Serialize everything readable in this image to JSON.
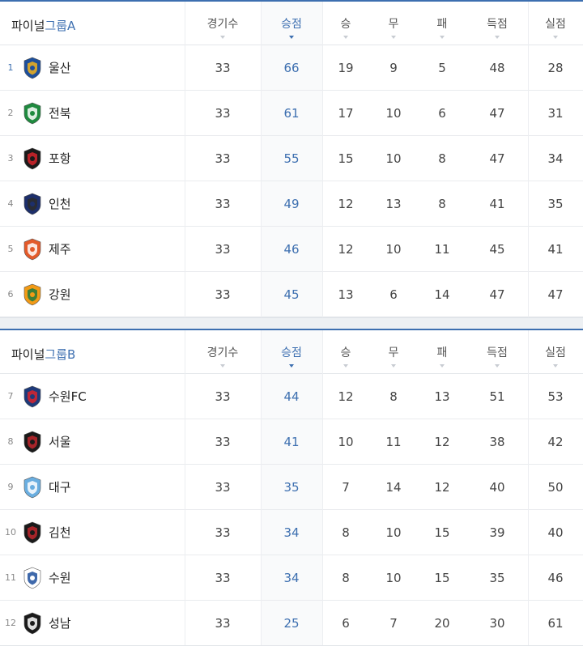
{
  "columns": [
    "경기수",
    "승점",
    "승",
    "무",
    "패",
    "득점",
    "실점"
  ],
  "group_a": {
    "title_prefix": "파이널",
    "title_group": "그룹A",
    "rows": [
      {
        "rank": "1",
        "team": "울산",
        "logo": "ulsan-logo",
        "games": "33",
        "pts": "66",
        "w": "19",
        "d": "9",
        "l": "5",
        "gf": "48",
        "ga": "28"
      },
      {
        "rank": "2",
        "team": "전북",
        "logo": "jeonbuk-logo",
        "games": "33",
        "pts": "61",
        "w": "17",
        "d": "10",
        "l": "6",
        "gf": "47",
        "ga": "31"
      },
      {
        "rank": "3",
        "team": "포항",
        "logo": "pohang-logo",
        "games": "33",
        "pts": "55",
        "w": "15",
        "d": "10",
        "l": "8",
        "gf": "47",
        "ga": "34"
      },
      {
        "rank": "4",
        "team": "인천",
        "logo": "incheon-logo",
        "games": "33",
        "pts": "49",
        "w": "12",
        "d": "13",
        "l": "8",
        "gf": "41",
        "ga": "35"
      },
      {
        "rank": "5",
        "team": "제주",
        "logo": "jeju-logo",
        "games": "33",
        "pts": "46",
        "w": "12",
        "d": "10",
        "l": "11",
        "gf": "45",
        "ga": "41"
      },
      {
        "rank": "6",
        "team": "강원",
        "logo": "gangwon-logo",
        "games": "33",
        "pts": "45",
        "w": "13",
        "d": "6",
        "l": "14",
        "gf": "47",
        "ga": "47"
      }
    ]
  },
  "group_b": {
    "title_prefix": "파이널",
    "title_group": "그룹B",
    "rows": [
      {
        "rank": "7",
        "team": "수원FC",
        "logo": "suwonfc-logo",
        "games": "33",
        "pts": "44",
        "w": "12",
        "d": "8",
        "l": "13",
        "gf": "51",
        "ga": "53"
      },
      {
        "rank": "8",
        "team": "서울",
        "logo": "seoul-logo",
        "games": "33",
        "pts": "41",
        "w": "10",
        "d": "11",
        "l": "12",
        "gf": "38",
        "ga": "42"
      },
      {
        "rank": "9",
        "team": "대구",
        "logo": "daegu-logo",
        "games": "33",
        "pts": "35",
        "w": "7",
        "d": "14",
        "l": "12",
        "gf": "40",
        "ga": "50"
      },
      {
        "rank": "10",
        "team": "김천",
        "logo": "gimcheon-logo",
        "games": "33",
        "pts": "34",
        "w": "8",
        "d": "10",
        "l": "15",
        "gf": "39",
        "ga": "40"
      },
      {
        "rank": "11",
        "team": "수원",
        "logo": "suwon-logo",
        "games": "33",
        "pts": "34",
        "w": "8",
        "d": "10",
        "l": "15",
        "gf": "35",
        "ga": "46"
      },
      {
        "rank": "12",
        "team": "성남",
        "logo": "seongnam-logo",
        "games": "33",
        "pts": "25",
        "w": "6",
        "d": "7",
        "l": "20",
        "gf": "30",
        "ga": "61"
      }
    ]
  },
  "colors": {
    "accent": "#3d6fb0",
    "text": "#333333",
    "muted": "#888888"
  }
}
